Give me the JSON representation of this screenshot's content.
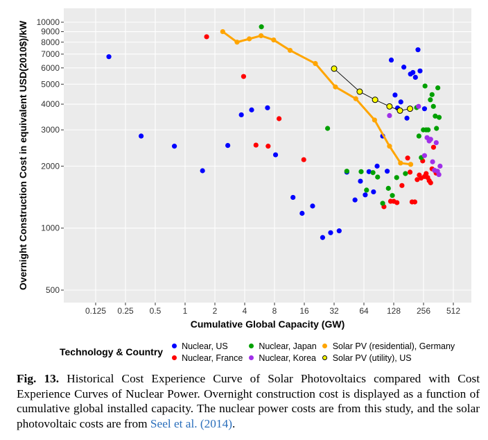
{
  "chart_data": {
    "type": "scatter",
    "xlabel": "Cumulative Global Capacity (GW)",
    "ylabel": "Overnight Construction Cost in equivalent USD(2010$)/kW",
    "x_scale": "log2",
    "y_scale": "log10",
    "x_ticks": [
      0.125,
      0.25,
      0.5,
      1,
      2,
      4,
      8,
      16,
      32,
      64,
      128,
      256,
      512
    ],
    "x_tick_labels": [
      "0.125",
      "0.25",
      "0.5",
      "1",
      "2",
      "4",
      "8",
      "16",
      "32",
      "64",
      "128",
      "256",
      "512"
    ],
    "y_ticks": [
      500,
      1000,
      2000,
      3000,
      4000,
      5000,
      6000,
      7000,
      8000,
      9000,
      10000
    ],
    "y_tick_labels": [
      "500",
      "1000",
      "2000",
      "3000",
      "4000",
      "5000",
      "6000",
      "7000",
      "8000",
      "9000",
      "10000"
    ],
    "xlim": [
      0.08,
      800
    ],
    "ylim": [
      440,
      11000
    ],
    "grid": true,
    "legend_title": "Technology & Country",
    "legend_position": "bottom",
    "series": [
      {
        "name": "Nuclear, US",
        "color": "#0000ff",
        "style": "points",
        "x": [
          0.17,
          0.36,
          0.78,
          1.5,
          2.7,
          3.7,
          4.7,
          6.8,
          8.2,
          12.3,
          15.2,
          19.4,
          24.5,
          29.5,
          36,
          43,
          52,
          59,
          66,
          72,
          80,
          87,
          99,
          110,
          121,
          132,
          140,
          151,
          162,
          174,
          189,
          200,
          212,
          225,
          236,
          262
        ],
        "y": [
          6800,
          2800,
          2500,
          1900,
          2520,
          3550,
          3750,
          3840,
          2270,
          1410,
          1180,
          1280,
          900,
          950,
          970,
          1870,
          1370,
          1690,
          1450,
          1880,
          1500,
          2000,
          2800,
          1890,
          6550,
          4430,
          3830,
          4100,
          6050,
          3420,
          5600,
          5700,
          5400,
          7350,
          5800,
          3800
        ]
      },
      {
        "name": "Nuclear, France",
        "color": "#ff0000",
        "style": "points",
        "x": [
          1.65,
          3.9,
          5.2,
          6.9,
          8.9,
          15.8,
          102,
          119,
          128,
          138,
          155,
          177,
          187,
          196,
          209,
          221,
          232,
          242,
          251,
          262,
          272,
          282,
          292,
          302,
          312,
          323,
          333,
          343
        ],
        "y": [
          8500,
          5450,
          2530,
          2500,
          3400,
          2150,
          1270,
          1350,
          1350,
          1330,
          1610,
          2190,
          1870,
          1340,
          1340,
          1720,
          1810,
          1750,
          2120,
          1780,
          1840,
          1760,
          1700,
          1660,
          1940,
          2470,
          1900,
          1850
        ]
      },
      {
        "name": "Nuclear, Japan",
        "color": "#00a000",
        "style": "points",
        "x": [
          5.9,
          27.5,
          43,
          60,
          68,
          79,
          88,
          99,
          113,
          124,
          137,
          168,
          218,
          230,
          243,
          255,
          265,
          272,
          285,
          300,
          312,
          322,
          336,
          346,
          357,
          368
        ],
        "y": [
          9500,
          3050,
          1890,
          1880,
          1530,
          1860,
          1770,
          1320,
          1560,
          1440,
          1760,
          1840,
          3850,
          2800,
          2200,
          3000,
          4900,
          3000,
          3000,
          4200,
          4450,
          3900,
          3500,
          3050,
          4800,
          3450
        ]
      },
      {
        "name": "Nuclear, Korea",
        "color": "#a030e8",
        "style": "points",
        "x": [
          116,
          228,
          262,
          278,
          292,
          302,
          316,
          330,
          344,
          354,
          366,
          376
        ],
        "y": [
          3520,
          3900,
          2250,
          2750,
          2650,
          2700,
          2100,
          1910,
          2600,
          1890,
          1820,
          2000
        ]
      },
      {
        "name": "Solar PV (residential), Germany",
        "color": "#ffa500",
        "style": "line+points",
        "x": [
          2.4,
          3.35,
          4.45,
          5.85,
          7.85,
          11.5,
          20.7,
          33,
          53,
          82,
          116,
          150,
          190
        ],
        "y": [
          9000,
          8000,
          8300,
          8600,
          8200,
          7300,
          6300,
          4850,
          4250,
          3350,
          2500,
          2070,
          2040
        ]
      },
      {
        "name": "Solar PV (utility), US",
        "color": "#ffff00",
        "edge_color": "#000000",
        "style": "line+points",
        "x": [
          32,
          58,
          83,
          116,
          148,
          187
        ],
        "y": [
          5950,
          4600,
          4200,
          3900,
          3720,
          3800
        ]
      }
    ]
  },
  "legend": {
    "title": "Technology & Country",
    "items": [
      {
        "label": "Nuclear, US",
        "color": "#0000ff"
      },
      {
        "label": "Nuclear, France",
        "color": "#ff0000"
      },
      {
        "label": "Nuclear, Japan",
        "color": "#00a000"
      },
      {
        "label": "Nuclear, Korea",
        "color": "#a030e8"
      },
      {
        "label": "Solar PV (residential), Germany",
        "color": "#ffa500"
      },
      {
        "label": "Solar PV (utility), US",
        "color": "#ffff00",
        "edge_color": "#000000"
      }
    ]
  },
  "caption": {
    "label": "Fig. 13.",
    "text": " Historical Cost Experience Curve of Solar Photovoltaics compared with Cost Experience Curves of Nuclear Power. Overnight construction cost is displayed as a function of cumulative global installed capacity. The nuclear power costs are from this study, and the solar photovoltaic costs are from ",
    "reference": "Seel et al. (2014)",
    "end": "."
  }
}
